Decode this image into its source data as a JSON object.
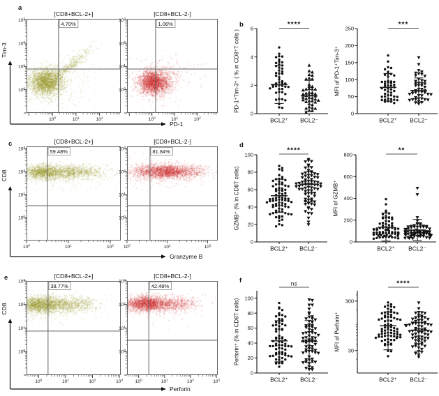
{
  "figure_bg": "#ffffff",
  "panels": {
    "letters": [
      "a",
      "b",
      "c",
      "d",
      "e",
      "f"
    ]
  },
  "chart_data": {
    "type": "figure",
    "flow_plots": [
      {
        "panel": "a",
        "pos": "left",
        "title": "[CD8+BCL-2+]",
        "quadrant_percent": "4.70%",
        "x_axis": "PD-1",
        "y_axis": "Tim-3",
        "dot_color": "#8f8f1a",
        "xrange": [
          -1.1,
          2.9
        ],
        "yrange": [
          -1.0,
          3.05
        ],
        "gate": [
          0.26,
          0.89
        ],
        "clusters": [
          {
            "x": -0.27,
            "y": 0.35,
            "sx": 0.36,
            "sy": 0.28,
            "n": 2300
          },
          {
            "x": 0.75,
            "y": 1.05,
            "sx": 0.45,
            "sy": 0.15,
            "slope": 0.75,
            "n": 380
          },
          {
            "x": 0.1,
            "y": 0.25,
            "sx": 0.85,
            "sy": 0.6,
            "n": 260
          }
        ]
      },
      {
        "panel": "a",
        "pos": "right",
        "title": "[CD8+BCL-2-]",
        "quadrant_percent": "1.06%",
        "x_axis": "PD-1",
        "y_axis": "Tim-3",
        "dot_color": "#c9201e",
        "xrange": [
          -1.1,
          2.9
        ],
        "yrange": [
          -1.0,
          3.05
        ],
        "gate": [
          0.16,
          0.89
        ],
        "clusters": [
          {
            "x": 0.05,
            "y": 0.33,
            "sx": 0.33,
            "sy": 0.26,
            "n": 2300
          },
          {
            "x": 0.85,
            "y": 0.6,
            "sx": 0.5,
            "sy": 0.28,
            "slope": 0.25,
            "n": 150
          },
          {
            "x": 0.2,
            "y": 0.35,
            "sx": 0.75,
            "sy": 0.55,
            "n": 160
          }
        ]
      },
      {
        "panel": "c",
        "pos": "left",
        "title": "[CD8+BCL-2+]",
        "quadrant_percent": "59.48%",
        "x_axis": "Granzyme B",
        "y_axis": "CD8",
        "dot_color": "#8f8f1a",
        "xrange": [
          0,
          2.25
        ],
        "yrange": [
          -1.0,
          3.1
        ],
        "gate": [
          0.5,
          0.52
        ],
        "clusters": [
          {
            "x": 0.38,
            "y": 1.98,
            "sx": 0.22,
            "sy": 0.16,
            "n": 950
          },
          {
            "x": 1.0,
            "y": 2.0,
            "sx": 0.42,
            "sy": 0.15,
            "n": 1150
          },
          {
            "x": 0.7,
            "y": 1.9,
            "sx": 0.7,
            "sy": 0.3,
            "n": 280
          }
        ]
      },
      {
        "panel": "c",
        "pos": "right",
        "title": "[CD8+BCL-2-]",
        "quadrant_percent": "81.84%",
        "x_axis": "Granzyme B",
        "y_axis": "CD8",
        "dot_color": "#c9201e",
        "xrange": [
          0,
          2.25
        ],
        "yrange": [
          -1.0,
          3.1
        ],
        "gate": [
          0.57,
          0.52
        ],
        "clusters": [
          {
            "x": 0.95,
            "y": 2.02,
            "sx": 0.42,
            "sy": 0.15,
            "n": 2100
          },
          {
            "x": 0.7,
            "y": 1.95,
            "sx": 0.75,
            "sy": 0.28,
            "n": 330
          }
        ]
      },
      {
        "panel": "e",
        "pos": "left",
        "title": "[CD8+BCL-2+]",
        "quadrant_percent": "38.77%",
        "x_axis": "Perforin",
        "y_axis": "CD8",
        "dot_color": "#8f8f1a",
        "xrange": [
          -0.45,
          3.05
        ],
        "yrange": [
          -1.0,
          3.0
        ],
        "gate": [
          0.35,
          0.87
        ],
        "clusters": [
          {
            "x": 0.0,
            "y": 2.0,
            "sx": 0.45,
            "sy": 0.18,
            "n": 1700
          },
          {
            "x": 1.2,
            "y": 2.02,
            "sx": 0.5,
            "sy": 0.16,
            "n": 700
          },
          {
            "x": 0.4,
            "y": 1.9,
            "sx": 0.9,
            "sy": 0.3,
            "n": 320
          }
        ]
      },
      {
        "panel": "e",
        "pos": "right",
        "title": "[CD8+BCL-2-]",
        "quadrant_percent": "42.48%",
        "x_axis": "Perforin",
        "y_axis": "CD8",
        "dot_color": "#c9201e",
        "xrange": [
          -0.45,
          3.05
        ],
        "yrange": [
          -1.0,
          3.0
        ],
        "gate": [
          0.39,
          0.48
        ],
        "clusters": [
          {
            "x": 0.3,
            "y": 2.05,
            "sx": 0.42,
            "sy": 0.16,
            "n": 1800
          },
          {
            "x": 1.4,
            "y": 2.05,
            "sx": 0.45,
            "sy": 0.15,
            "n": 500
          },
          {
            "x": 0.6,
            "y": 1.95,
            "sx": 0.85,
            "sy": 0.28,
            "n": 300
          }
        ]
      }
    ],
    "dot_plots": [
      {
        "panel": "b",
        "ylabel": "PD-1⁺Tim-3⁺ ( % in CD8⁺T cells )",
        "significance": "****",
        "scale": "linear",
        "ylim": [
          0,
          6
        ],
        "yticks": [
          0,
          2,
          4,
          6
        ],
        "categories": [
          "BCL2⁺",
          "BCL2⁻"
        ],
        "groups": [
          {
            "label": "BCL2⁺",
            "marker": "circle",
            "n": 48,
            "mean": 2.05,
            "sd_lo": 0.72,
            "sd_hi": 3.4,
            "gen": {
              "dist": "normal",
              "m": 2.05,
              "s": 1.32,
              "min": 0.07,
              "max": 5.55
            }
          },
          {
            "label": "BCL2⁻",
            "marker": "triangle-up",
            "n": 45,
            "mean": 1.25,
            "sd_lo": 0.18,
            "sd_hi": 2.35,
            "gen": {
              "dist": "normal",
              "m": 1.25,
              "s": 1.05,
              "min": 0.06,
              "max": 4.5
            }
          }
        ]
      },
      {
        "panel": "b",
        "ylabel": "MFI of PD-1⁺Tim-3⁺",
        "significance": "***",
        "scale": "linear",
        "ylim": [
          0,
          250
        ],
        "yticks": [
          0,
          50,
          100,
          150,
          200,
          250
        ],
        "categories": [
          "BCL2⁺",
          "BCL2⁻"
        ],
        "groups": [
          {
            "label": "BCL2⁺",
            "marker": "circle",
            "n": 48,
            "mean": 77,
            "sd_lo": 37,
            "sd_hi": 118,
            "gen": {
              "dist": "normal",
              "m": 77,
              "s": 41,
              "min": 28,
              "max": 222
            }
          },
          {
            "label": "BCL2⁻",
            "marker": "triangle-down",
            "n": 48,
            "mean": 68,
            "sd_lo": 33,
            "sd_hi": 105,
            "gen": {
              "dist": "normal",
              "m": 68,
              "s": 37,
              "min": 28,
              "max": 211
            }
          }
        ]
      },
      {
        "panel": "d",
        "ylabel": "GZMB⁺ (% in CD8T cells)",
        "significance": "****",
        "scale": "linear",
        "ylim": [
          0,
          100
        ],
        "yticks": [
          0,
          20,
          40,
          60,
          80,
          100
        ],
        "categories": [
          "BCL2⁺",
          "BCL2⁻"
        ],
        "groups": [
          {
            "label": "BCL2⁺",
            "marker": "circle",
            "n": 78,
            "mean": 53,
            "sd_lo": 34,
            "sd_hi": 72,
            "gen": {
              "dist": "normal",
              "m": 53,
              "s": 19,
              "min": 2,
              "max": 94
            }
          },
          {
            "label": "BCL2⁻",
            "marker": "triangle-down",
            "n": 78,
            "mean": 66,
            "sd_lo": 46,
            "sd_hi": 86,
            "gen": {
              "dist": "normal",
              "m": 66,
              "s": 20,
              "min": 2,
              "max": 95
            }
          }
        ]
      },
      {
        "panel": "d",
        "ylabel": "MFI of GZMB⁺",
        "significance": "**",
        "scale": "linear",
        "ylim": [
          0,
          800
        ],
        "yticks": [
          0,
          200,
          400,
          600,
          800
        ],
        "categories": [
          "BCL2⁺",
          "BCL2⁻"
        ],
        "groups": [
          {
            "label": "BCL2⁺",
            "marker": "circle",
            "n": 72,
            "mean": 135,
            "sd_lo": 8,
            "sd_hi": 265,
            "gen": {
              "dist": "log",
              "m": 2.0,
              "s": 0.27,
              "min": 28,
              "max": 612
            }
          },
          {
            "label": "BCL2⁻",
            "marker": "triangle-down",
            "n": 72,
            "mean": 110,
            "sd_lo": 12,
            "sd_hi": 207,
            "gen": {
              "dist": "log",
              "m": 1.95,
              "s": 0.24,
              "min": 28,
              "max": 676
            }
          }
        ]
      },
      {
        "panel": "f",
        "ylabel": "Perforin⁺ (% in CD8T cells)",
        "significance": "ns",
        "scale": "linear",
        "ylim": [
          0,
          110
        ],
        "yticks": [
          0,
          20,
          40,
          60,
          80,
          100
        ],
        "categories": [
          "BCL2⁺",
          "BCL2⁻"
        ],
        "groups": [
          {
            "label": "BCL2⁺",
            "marker": "circle",
            "n": 72,
            "mean": 43,
            "sd_lo": 15,
            "sd_hi": 70,
            "gen": {
              "dist": "normal",
              "m": 43,
              "s": 27,
              "min": 2,
              "max": 100
            }
          },
          {
            "label": "BCL2⁻",
            "marker": "triangle-down",
            "n": 70,
            "mean": 42,
            "sd_lo": 14,
            "sd_hi": 70,
            "gen": {
              "dist": "normal",
              "m": 42,
              "s": 28,
              "min": 2,
              "max": 100
            }
          }
        ]
      },
      {
        "panel": "f",
        "ylabel": "MFI of Perforin⁺",
        "significance": "****",
        "scale": "log",
        "ylim": [
          10.5,
          485
        ],
        "yticks": [
          30,
          300
        ],
        "yminors": [
          20,
          40,
          50,
          60,
          70,
          80,
          90,
          100,
          200,
          400
        ],
        "categories": [
          "BCL2⁺",
          "BCL2⁻"
        ],
        "groups": [
          {
            "label": "BCL2⁺",
            "marker": "circle",
            "n": 75,
            "mean": 95,
            "sd_lo": 31,
            "sd_hi": 180,
            "gen": {
              "dist": "log",
              "m": 1.97,
              "s": 0.26,
              "min": 20,
              "max": 310
            }
          },
          {
            "label": "BCL2⁻",
            "marker": "triangle-down",
            "n": 72,
            "mean": 76,
            "sd_lo": 29,
            "sd_hi": 130,
            "gen": {
              "dist": "log",
              "m": 1.87,
              "s": 0.27,
              "min": 17,
              "max": 290
            }
          }
        ]
      }
    ]
  }
}
